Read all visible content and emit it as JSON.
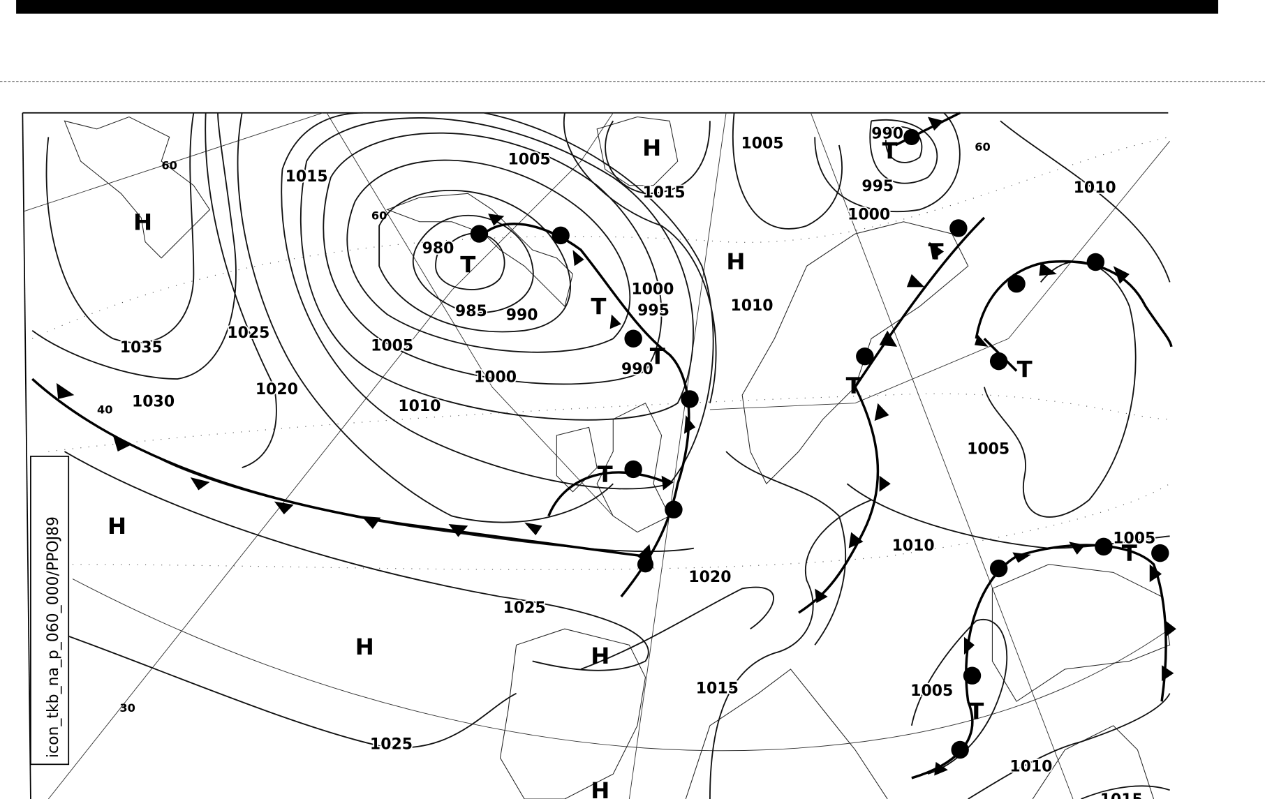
{
  "map_id": "icon_tkb_na_p_060_000/PPOJ89",
  "isobar_labels": [
    "1005",
    "1015",
    "980",
    "985",
    "990",
    "1005",
    "1000",
    "1010",
    "1035",
    "1025",
    "1030",
    "1020",
    "1015",
    "1005",
    "1000",
    "995",
    "990",
    "1010",
    "990",
    "995",
    "1000",
    "1010",
    "1005",
    "1010",
    "1020",
    "1025",
    "1025",
    "1015",
    "1005",
    "1005",
    "1010",
    "1015"
  ],
  "pressure_centers": [
    "H",
    "H",
    "H",
    "H",
    "H",
    "H",
    "H",
    "T",
    "T",
    "T",
    "T",
    "T",
    "T",
    "T",
    "T",
    "T",
    "T"
  ],
  "latitude_labels": [
    "60",
    "60",
    "60",
    "40",
    "30"
  ],
  "colors": {
    "ink": "#000000",
    "background": "#ffffff"
  }
}
